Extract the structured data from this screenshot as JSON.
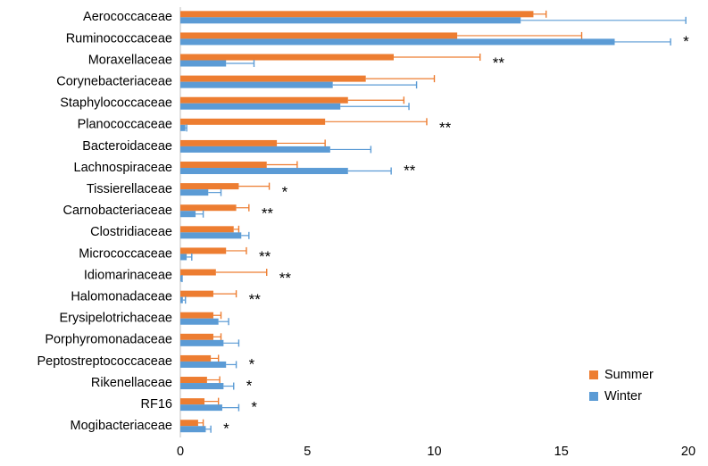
{
  "chart_data": {
    "type": "bar",
    "orientation": "horizontal",
    "categories": [
      "Aerococcaceae",
      "Ruminococcaceae",
      "Moraxellaceae",
      "Corynebacteriaceae",
      "Staphylococcaceae",
      "Planococcaceae",
      "Bacteroidaceae",
      "Lachnospiraceae",
      "Tissierellaceae",
      "Carnobacteriaceae",
      "Clostridiaceae",
      "Micrococcaceae",
      "Idiomarinaceae",
      "Halomonadaceae",
      "Erysipelotrichaceae",
      "Porphyromonadaceae",
      "Peptostreptococcaceae",
      "Rikenellaceae",
      "RF16",
      "Mogibacteriaceae"
    ],
    "series": [
      {
        "name": "Summer",
        "color": "#ed7d31",
        "values": [
          13.9,
          10.9,
          8.4,
          7.3,
          6.6,
          5.7,
          3.8,
          3.4,
          2.3,
          2.2,
          2.1,
          1.8,
          1.4,
          1.3,
          1.3,
          1.3,
          1.2,
          1.05,
          0.95,
          0.7
        ],
        "errors": [
          0.5,
          4.9,
          3.4,
          2.7,
          2.2,
          4.0,
          1.9,
          1.2,
          1.2,
          0.5,
          0.2,
          0.8,
          2.0,
          0.9,
          0.3,
          0.3,
          0.3,
          0.5,
          0.55,
          0.2
        ]
      },
      {
        "name": "Winter",
        "color": "#5b9bd5",
        "values": [
          13.4,
          17.1,
          1.8,
          6.0,
          6.3,
          0.2,
          5.9,
          6.6,
          1.1,
          0.6,
          2.4,
          0.25,
          0.05,
          0.1,
          1.5,
          1.7,
          1.8,
          1.7,
          1.65,
          1.0
        ],
        "errors": [
          6.5,
          2.2,
          1.1,
          3.3,
          2.7,
          0.05,
          1.6,
          1.7,
          0.5,
          0.3,
          0.3,
          0.2,
          0.02,
          0.1,
          0.4,
          0.6,
          0.4,
          0.4,
          0.65,
          0.2
        ]
      }
    ],
    "annotations": [
      null,
      "*",
      "**",
      null,
      null,
      "**",
      null,
      "**",
      "*",
      "**",
      null,
      "**",
      "**",
      "**",
      null,
      null,
      "*",
      "*",
      "*",
      "*"
    ],
    "xlim": [
      0,
      20
    ],
    "xticks": [
      0,
      5,
      10,
      15,
      20
    ],
    "grid": false,
    "legend": "bottom-right"
  }
}
